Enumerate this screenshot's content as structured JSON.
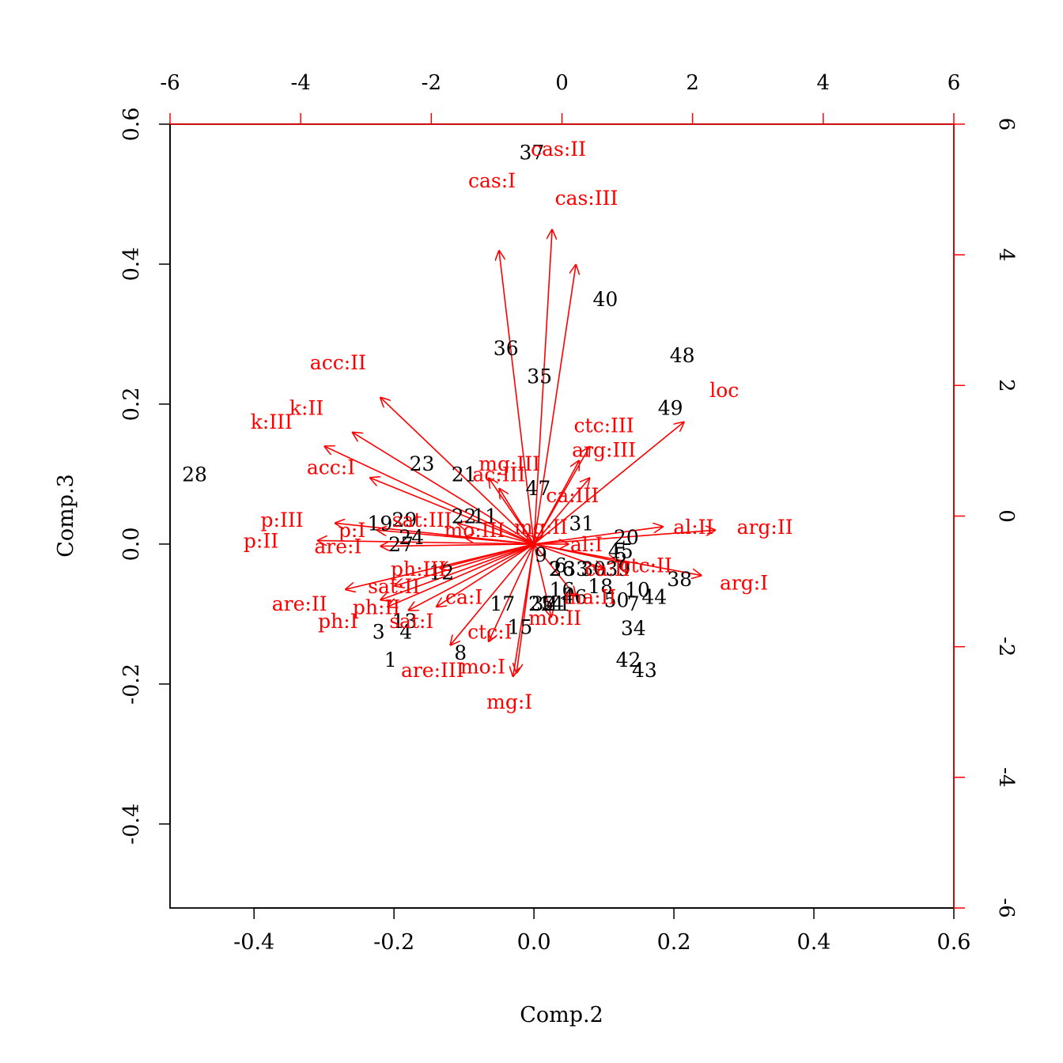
{
  "chart_data": {
    "type": "scatter",
    "xlabel": "Comp.2",
    "ylabel": "Comp.3",
    "xlim": [
      -0.52,
      0.6
    ],
    "ylim": [
      -0.52,
      0.6
    ],
    "x_ticks": [
      "-0.4",
      "-0.2",
      "0.0",
      "0.2",
      "0.4",
      "0.6"
    ],
    "y_ticks": [
      "-0.4",
      "-0.2",
      "0.0",
      "0.2",
      "0.4",
      "0.6"
    ],
    "top_ticks": [
      "-6",
      "-4",
      "-2",
      "0",
      "2",
      "4",
      "6"
    ],
    "right_ticks": [
      "-6",
      "-4",
      "-2",
      "0",
      "2",
      "4",
      "6"
    ],
    "secondary_lim": [
      -6,
      6
    ],
    "colors": {
      "observations": "#000000",
      "variables": "#ff0000"
    },
    "observations": [
      {
        "label": "1",
        "x": -0.205,
        "y": -0.165
      },
      {
        "label": "2",
        "x": 0.03,
        "y": -0.035
      },
      {
        "label": "3",
        "x": -0.222,
        "y": -0.125
      },
      {
        "label": "4",
        "x": -0.183,
        "y": -0.125
      },
      {
        "label": "5",
        "x": 0.124,
        "y": -0.015
      },
      {
        "label": "6",
        "x": 0.038,
        "y": -0.03
      },
      {
        "label": "7",
        "x": 0.142,
        "y": -0.085
      },
      {
        "label": "8",
        "x": -0.105,
        "y": -0.155
      },
      {
        "label": "9",
        "x": 0.01,
        "y": -0.015
      },
      {
        "label": "10",
        "x": 0.148,
        "y": -0.065
      },
      {
        "label": "11",
        "x": -0.07,
        "y": 0.04
      },
      {
        "label": "12",
        "x": -0.132,
        "y": -0.04
      },
      {
        "label": "13",
        "x": -0.185,
        "y": -0.11
      },
      {
        "label": "14",
        "x": 0.025,
        "y": -0.085
      },
      {
        "label": "15",
        "x": -0.02,
        "y": -0.118
      },
      {
        "label": "16",
        "x": 0.04,
        "y": -0.065
      },
      {
        "label": "17",
        "x": -0.045,
        "y": -0.085
      },
      {
        "label": "18",
        "x": 0.095,
        "y": -0.06
      },
      {
        "label": "19",
        "x": -0.22,
        "y": 0.03
      },
      {
        "label": "20",
        "x": 0.132,
        "y": 0.01
      },
      {
        "label": "21",
        "x": -0.1,
        "y": 0.1
      },
      {
        "label": "22",
        "x": -0.1,
        "y": 0.04
      },
      {
        "label": "23",
        "x": -0.16,
        "y": 0.115
      },
      {
        "label": "24",
        "x": -0.175,
        "y": 0.01
      },
      {
        "label": "25",
        "x": 0.01,
        "y": -0.085
      },
      {
        "label": "26",
        "x": 0.04,
        "y": -0.035
      },
      {
        "label": "27",
        "x": -0.19,
        "y": 0.0
      },
      {
        "label": "28",
        "x": -0.485,
        "y": 0.1
      },
      {
        "label": "29",
        "x": -0.185,
        "y": 0.035
      },
      {
        "label": "30",
        "x": 0.085,
        "y": -0.035
      },
      {
        "label": "31",
        "x": 0.068,
        "y": 0.03
      },
      {
        "label": "32",
        "x": 0.014,
        "y": -0.085
      },
      {
        "label": "33",
        "x": 0.06,
        "y": -0.035
      },
      {
        "label": "34",
        "x": 0.142,
        "y": -0.12
      },
      {
        "label": "35",
        "x": 0.008,
        "y": 0.24
      },
      {
        "label": "36",
        "x": -0.04,
        "y": 0.28
      },
      {
        "label": "37",
        "x": -0.003,
        "y": 0.56
      },
      {
        "label": "38",
        "x": 0.208,
        "y": -0.05
      },
      {
        "label": "39",
        "x": 0.12,
        "y": -0.035
      },
      {
        "label": "40",
        "x": 0.102,
        "y": 0.35
      },
      {
        "label": "41",
        "x": 0.035,
        "y": -0.085
      },
      {
        "label": "42",
        "x": 0.135,
        "y": -0.165
      },
      {
        "label": "43",
        "x": 0.158,
        "y": -0.18
      },
      {
        "label": "44",
        "x": 0.172,
        "y": -0.075
      },
      {
        "label": "45",
        "x": 0.124,
        "y": -0.01
      },
      {
        "label": "46",
        "x": 0.058,
        "y": -0.075
      },
      {
        "label": "47",
        "x": 0.006,
        "y": 0.08
      },
      {
        "label": "48",
        "x": 0.212,
        "y": 0.27
      },
      {
        "label": "49",
        "x": 0.195,
        "y": 0.195
      },
      {
        "label": "50",
        "x": 0.118,
        "y": -0.08
      }
    ],
    "variables": [
      {
        "label": "cas:II",
        "x": 0.026,
        "y": 0.45,
        "lx": 0.035,
        "ly": 0.565
      },
      {
        "label": "cas:I",
        "x": -0.05,
        "y": 0.42,
        "lx": -0.06,
        "ly": 0.52
      },
      {
        "label": "cas:III",
        "x": 0.06,
        "y": 0.4,
        "lx": 0.075,
        "ly": 0.495
      },
      {
        "label": "acc:II",
        "x": -0.22,
        "y": 0.21,
        "lx": -0.28,
        "ly": 0.26
      },
      {
        "label": "k:II",
        "x": -0.26,
        "y": 0.16,
        "lx": -0.325,
        "ly": 0.195
      },
      {
        "label": "k:III",
        "x": -0.3,
        "y": 0.14,
        "lx": -0.375,
        "ly": 0.175
      },
      {
        "label": "acc:I",
        "x": -0.235,
        "y": 0.095,
        "lx": -0.29,
        "ly": 0.11
      },
      {
        "label": "p:III",
        "x": -0.285,
        "y": 0.03,
        "lx": -0.36,
        "ly": 0.035
      },
      {
        "label": "p:II",
        "x": -0.31,
        "y": 0.005,
        "lx": -0.39,
        "ly": 0.005
      },
      {
        "label": "p:I",
        "x": -0.225,
        "y": 0.02,
        "lx": -0.26,
        "ly": 0.02
      },
      {
        "label": "are:I",
        "x": -0.22,
        "y": -0.003,
        "lx": -0.28,
        "ly": -0.003
      },
      {
        "label": "are:II",
        "x": -0.27,
        "y": -0.065,
        "lx": -0.335,
        "ly": -0.085
      },
      {
        "label": "ph:I",
        "x": -0.21,
        "y": -0.09,
        "lx": -0.28,
        "ly": -0.11
      },
      {
        "label": "ph:II",
        "x": -0.22,
        "y": -0.08,
        "lx": -0.225,
        "ly": -0.09
      },
      {
        "label": "ph:III",
        "x": -0.135,
        "y": -0.035,
        "lx": -0.165,
        "ly": -0.035
      },
      {
        "label": "sat:I",
        "x": -0.18,
        "y": -0.095,
        "lx": -0.175,
        "ly": -0.11
      },
      {
        "label": "sat:II",
        "x": -0.2,
        "y": -0.06,
        "lx": -0.2,
        "ly": -0.06
      },
      {
        "label": "sat:III",
        "x": -0.11,
        "y": 0.03,
        "lx": -0.16,
        "ly": 0.035
      },
      {
        "label": "are:III",
        "x": -0.12,
        "y": -0.145,
        "lx": -0.145,
        "ly": -0.18
      },
      {
        "label": "mo:I",
        "x": -0.025,
        "y": -0.185,
        "lx": -0.073,
        "ly": -0.175
      },
      {
        "label": "mg:I",
        "x": -0.03,
        "y": -0.19,
        "lx": -0.035,
        "ly": -0.225
      },
      {
        "label": "ctc:I",
        "x": -0.065,
        "y": -0.14,
        "lx": -0.063,
        "ly": -0.125
      },
      {
        "label": "ca:I",
        "x": -0.14,
        "y": -0.09,
        "lx": -0.1,
        "ly": -0.075
      },
      {
        "label": "mo:II",
        "x": 0.025,
        "y": -0.105,
        "lx": 0.03,
        "ly": -0.105
      },
      {
        "label": "mo:III",
        "x": -0.1,
        "y": 0.01,
        "lx": -0.085,
        "ly": 0.02
      },
      {
        "label": "mg:II",
        "x": -0.01,
        "y": 0.015,
        "lx": 0.01,
        "ly": 0.025
      },
      {
        "label": "mg:III",
        "x": -0.065,
        "y": 0.095,
        "lx": -0.035,
        "ly": 0.115
      },
      {
        "label": "ac:III",
        "x": -0.05,
        "y": 0.08,
        "lx": -0.05,
        "ly": 0.1
      },
      {
        "label": "ca:III",
        "x": 0.08,
        "y": 0.095,
        "lx": 0.055,
        "ly": 0.07
      },
      {
        "label": "ctc:III",
        "x": 0.08,
        "y": 0.14,
        "lx": 0.1,
        "ly": 0.17
      },
      {
        "label": "arg:III",
        "x": 0.065,
        "y": 0.12,
        "lx": 0.1,
        "ly": 0.135
      },
      {
        "label": "loc",
        "x": 0.215,
        "y": 0.175,
        "lx": 0.272,
        "ly": 0.22
      },
      {
        "label": "al:II",
        "x": 0.185,
        "y": 0.025,
        "lx": 0.228,
        "ly": 0.025
      },
      {
        "label": "arg:II",
        "x": 0.26,
        "y": 0.02,
        "lx": 0.33,
        "ly": 0.025
      },
      {
        "label": "arg:I",
        "x": 0.24,
        "y": -0.045,
        "lx": 0.3,
        "ly": -0.055
      },
      {
        "label": "ctc:II",
        "x": 0.12,
        "y": -0.025,
        "lx": 0.16,
        "ly": -0.03
      },
      {
        "label": "ca:II",
        "x": 0.1,
        "y": -0.035,
        "lx": 0.105,
        "ly": -0.035
      },
      {
        "label": "al:I",
        "x": 0.05,
        "y": 0.0,
        "lx": 0.075,
        "ly": 0.0
      },
      {
        "label": "ma:II",
        "x": 0.06,
        "y": -0.075,
        "lx": 0.08,
        "ly": -0.075
      }
    ]
  }
}
